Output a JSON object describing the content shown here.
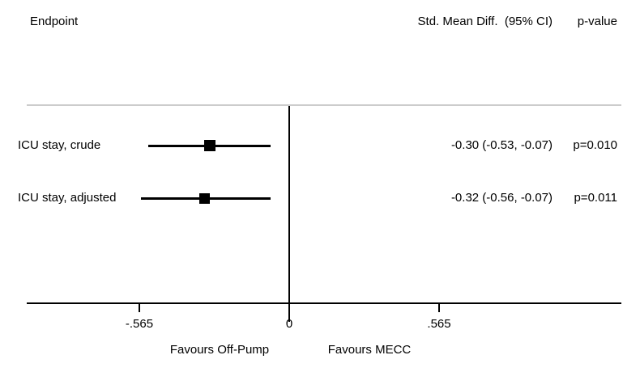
{
  "header": {
    "endpoint": "Endpoint",
    "effect": "Std. Mean Diff.  (95% CI)",
    "pvalue": "p-value"
  },
  "rows": [
    {
      "label": "ICU stay, crude",
      "estimate": -0.3,
      "ci_low": -0.53,
      "ci_high": -0.07,
      "estimate_text": "-0.30 (-0.53, -0.07)",
      "p_text": "p=0.010"
    },
    {
      "label": "ICU stay, adjusted",
      "estimate": -0.32,
      "ci_low": -0.56,
      "ci_high": -0.07,
      "estimate_text": "-0.32 (-0.56, -0.07)",
      "p_text": "p=0.011"
    }
  ],
  "axis": {
    "tick_labels": [
      "-.565",
      "0",
      ".565"
    ],
    "tick_values": [
      -0.565,
      0,
      0.565
    ],
    "favours_left": "Favours Off-Pump",
    "favours_right": "Favours MECC"
  },
  "colors": {
    "ink": "#000000",
    "separator": "#cccccc"
  },
  "chart_data": {
    "type": "scatter",
    "subtype": "forest-plot",
    "title": "",
    "columns": [
      "Endpoint",
      "Std. Mean Diff.  (95% CI)",
      "p-value"
    ],
    "series": [
      {
        "name": "ICU stay, crude",
        "estimate": -0.3,
        "ci_low": -0.53,
        "ci_high": -0.07,
        "p_value": 0.01
      },
      {
        "name": "ICU stay, adjusted",
        "estimate": -0.32,
        "ci_low": -0.56,
        "ci_high": -0.07,
        "p_value": 0.011
      }
    ],
    "reference_line_x": 0,
    "x_ticks": [
      -0.565,
      0,
      0.565
    ],
    "x_tick_labels": [
      "-.565",
      "0",
      ".565"
    ],
    "xlim": [
      -0.99,
      1.25
    ],
    "xlabel_left": "Favours Off-Pump",
    "xlabel_right": "Favours MECC",
    "grid": false,
    "legend": false
  }
}
